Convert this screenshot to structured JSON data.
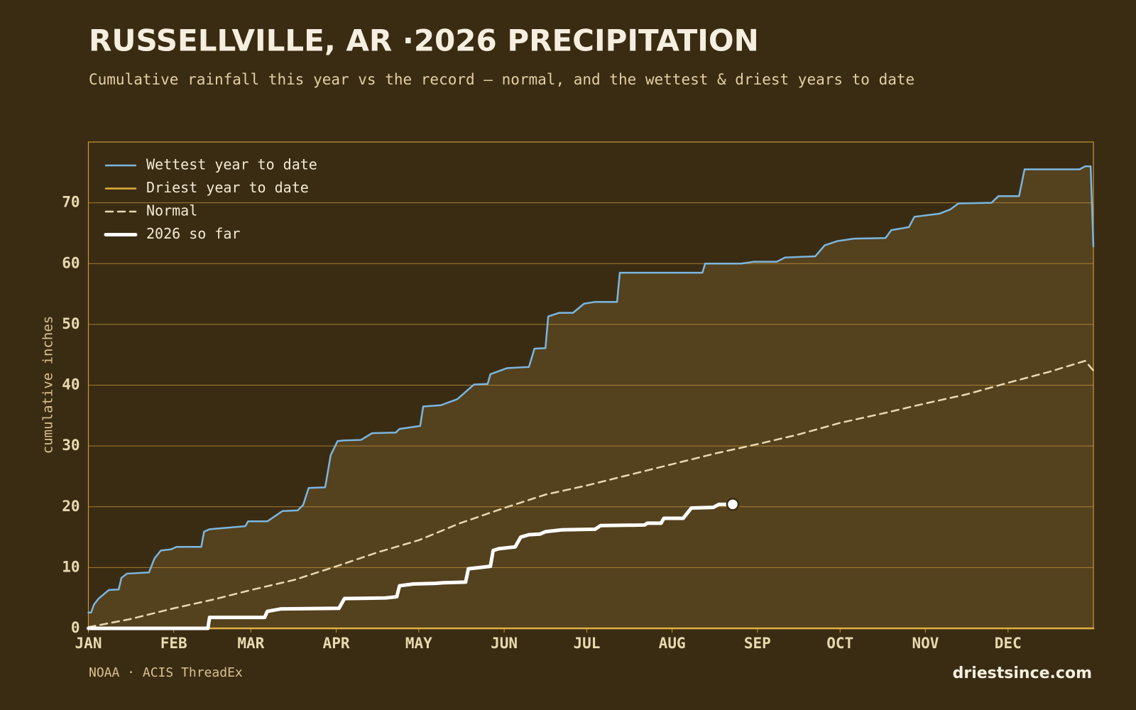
{
  "chart_data": {
    "type": "line",
    "title": "RUSSELLVILLE, AR ·2026 PRECIPITATION",
    "subtitle": "Cumulative rainfall this year vs the record — normal, and the wettest & driest years to date",
    "y_label": "cumulative inches",
    "source": "NOAA · ACIS ThreadEx",
    "brand": "driestsince.com",
    "xlim": [
      0,
      365
    ],
    "xticks": [
      {
        "value": 0,
        "label": "JAN"
      },
      {
        "value": 31,
        "label": "FEB"
      },
      {
        "value": 59,
        "label": "MAR"
      },
      {
        "value": 90,
        "label": "APR"
      },
      {
        "value": 120,
        "label": "MAY"
      },
      {
        "value": 151,
        "label": "JUN"
      },
      {
        "value": 181,
        "label": "JUL"
      },
      {
        "value": 212,
        "label": "AUG"
      },
      {
        "value": 243,
        "label": "SEP"
      },
      {
        "value": 273,
        "label": "OCT"
      },
      {
        "value": 304,
        "label": "NOV"
      },
      {
        "value": 334,
        "label": "DEC"
      }
    ],
    "ylim": [
      0,
      80
    ],
    "yticks": [
      0,
      10,
      20,
      30,
      40,
      50,
      60,
      70
    ],
    "grid": true,
    "grid_color": "#c9963a",
    "band_fill": "#54411e",
    "legend": "upper left",
    "series": [
      {
        "name": "Wettest year to date",
        "color": "#7cb6e0",
        "line_width": 2.5,
        "dashed": false,
        "x": [
          0,
          1,
          2,
          3.7,
          7.4,
          11,
          12,
          14,
          22,
          24,
          26.3,
          30,
          32,
          41,
          42,
          44,
          57,
          58,
          65,
          70.5,
          76,
          78,
          80,
          86,
          88,
          90.5,
          92.6,
          99,
          103,
          111.6,
          113,
          120.5,
          121.6,
          128,
          134,
          140,
          145,
          146,
          152,
          160,
          162,
          166,
          167,
          171,
          176,
          180,
          184,
          192,
          193,
          223,
          224,
          237,
          241.6,
          250,
          253,
          264,
          267.4,
          272,
          278,
          289.5,
          291.6,
          298,
          300,
          309,
          313,
          316,
          328,
          330.5,
          338,
          340,
          360,
          362,
          364,
          365
        ],
        "values": [
          2.6,
          2.6,
          3.9,
          4.9,
          6.3,
          6.4,
          8.3,
          9.0,
          9.2,
          11.5,
          12.8,
          13.0,
          13.4,
          13.4,
          15.9,
          16.3,
          16.8,
          17.6,
          17.6,
          19.3,
          19.4,
          20.3,
          23.1,
          23.2,
          28.5,
          30.8,
          30.9,
          31.0,
          32.1,
          32.2,
          32.8,
          33.3,
          36.5,
          36.7,
          37.7,
          40.1,
          40.2,
          41.8,
          42.8,
          43.0,
          46.0,
          46.1,
          51.3,
          51.9,
          51.9,
          53.4,
          53.7,
          53.7,
          58.5,
          58.5,
          60.0,
          60.0,
          60.3,
          60.3,
          61.0,
          61.2,
          63.0,
          63.7,
          64.1,
          64.2,
          65.5,
          66.0,
          67.7,
          68.2,
          68.9,
          69.9,
          70.0,
          71.1,
          71.1,
          75.5,
          75.5,
          76.0,
          76.0,
          62.8
        ]
      },
      {
        "name": "Driest year to date",
        "color": "#e0b040",
        "line_width": 2.5,
        "dashed": false,
        "x": [
          0,
          365
        ],
        "values": [
          0,
          0
        ]
      },
      {
        "name": "Normal",
        "color": "#e8d9b0",
        "line_width": 2.5,
        "dashed": true,
        "x": [
          0,
          15,
          31,
          45,
          59,
          75,
          90,
          105,
          120,
          135,
          151,
          166,
          181,
          196,
          212,
          228,
          243,
          258,
          273,
          289,
          304,
          319,
          334,
          349,
          362,
          365
        ],
        "values": [
          0.2,
          1.5,
          3.3,
          4.7,
          6.3,
          8.0,
          10.2,
          12.5,
          14.5,
          17.3,
          19.8,
          22.0,
          23.5,
          25.2,
          27.0,
          28.8,
          30.3,
          31.9,
          33.8,
          35.4,
          37.0,
          38.5,
          40.4,
          42.2,
          44.0,
          42.4
        ]
      },
      {
        "name": "2026 so far",
        "color": "#ffffff",
        "line_width": 5,
        "dashed": false,
        "x": [
          0,
          43.4,
          44,
          64,
          65,
          70,
          91,
          93,
          108,
          112,
          113,
          118,
          126,
          129,
          137,
          138,
          144,
          146,
          147,
          149,
          155,
          157,
          160,
          164,
          166,
          172,
          184,
          186,
          202,
          203,
          208,
          209,
          216,
          219,
          227,
          229,
          234
        ],
        "values": [
          0,
          0,
          1.8,
          1.8,
          2.8,
          3.2,
          3.3,
          4.9,
          5.0,
          5.2,
          7.0,
          7.3,
          7.4,
          7.5,
          7.6,
          9.8,
          10.1,
          10.2,
          12.8,
          13.1,
          13.4,
          15.0,
          15.4,
          15.5,
          15.9,
          16.2,
          16.3,
          16.9,
          17.0,
          17.3,
          17.3,
          18.1,
          18.1,
          19.8,
          19.9,
          20.4,
          20.4
        ]
      }
    ]
  }
}
